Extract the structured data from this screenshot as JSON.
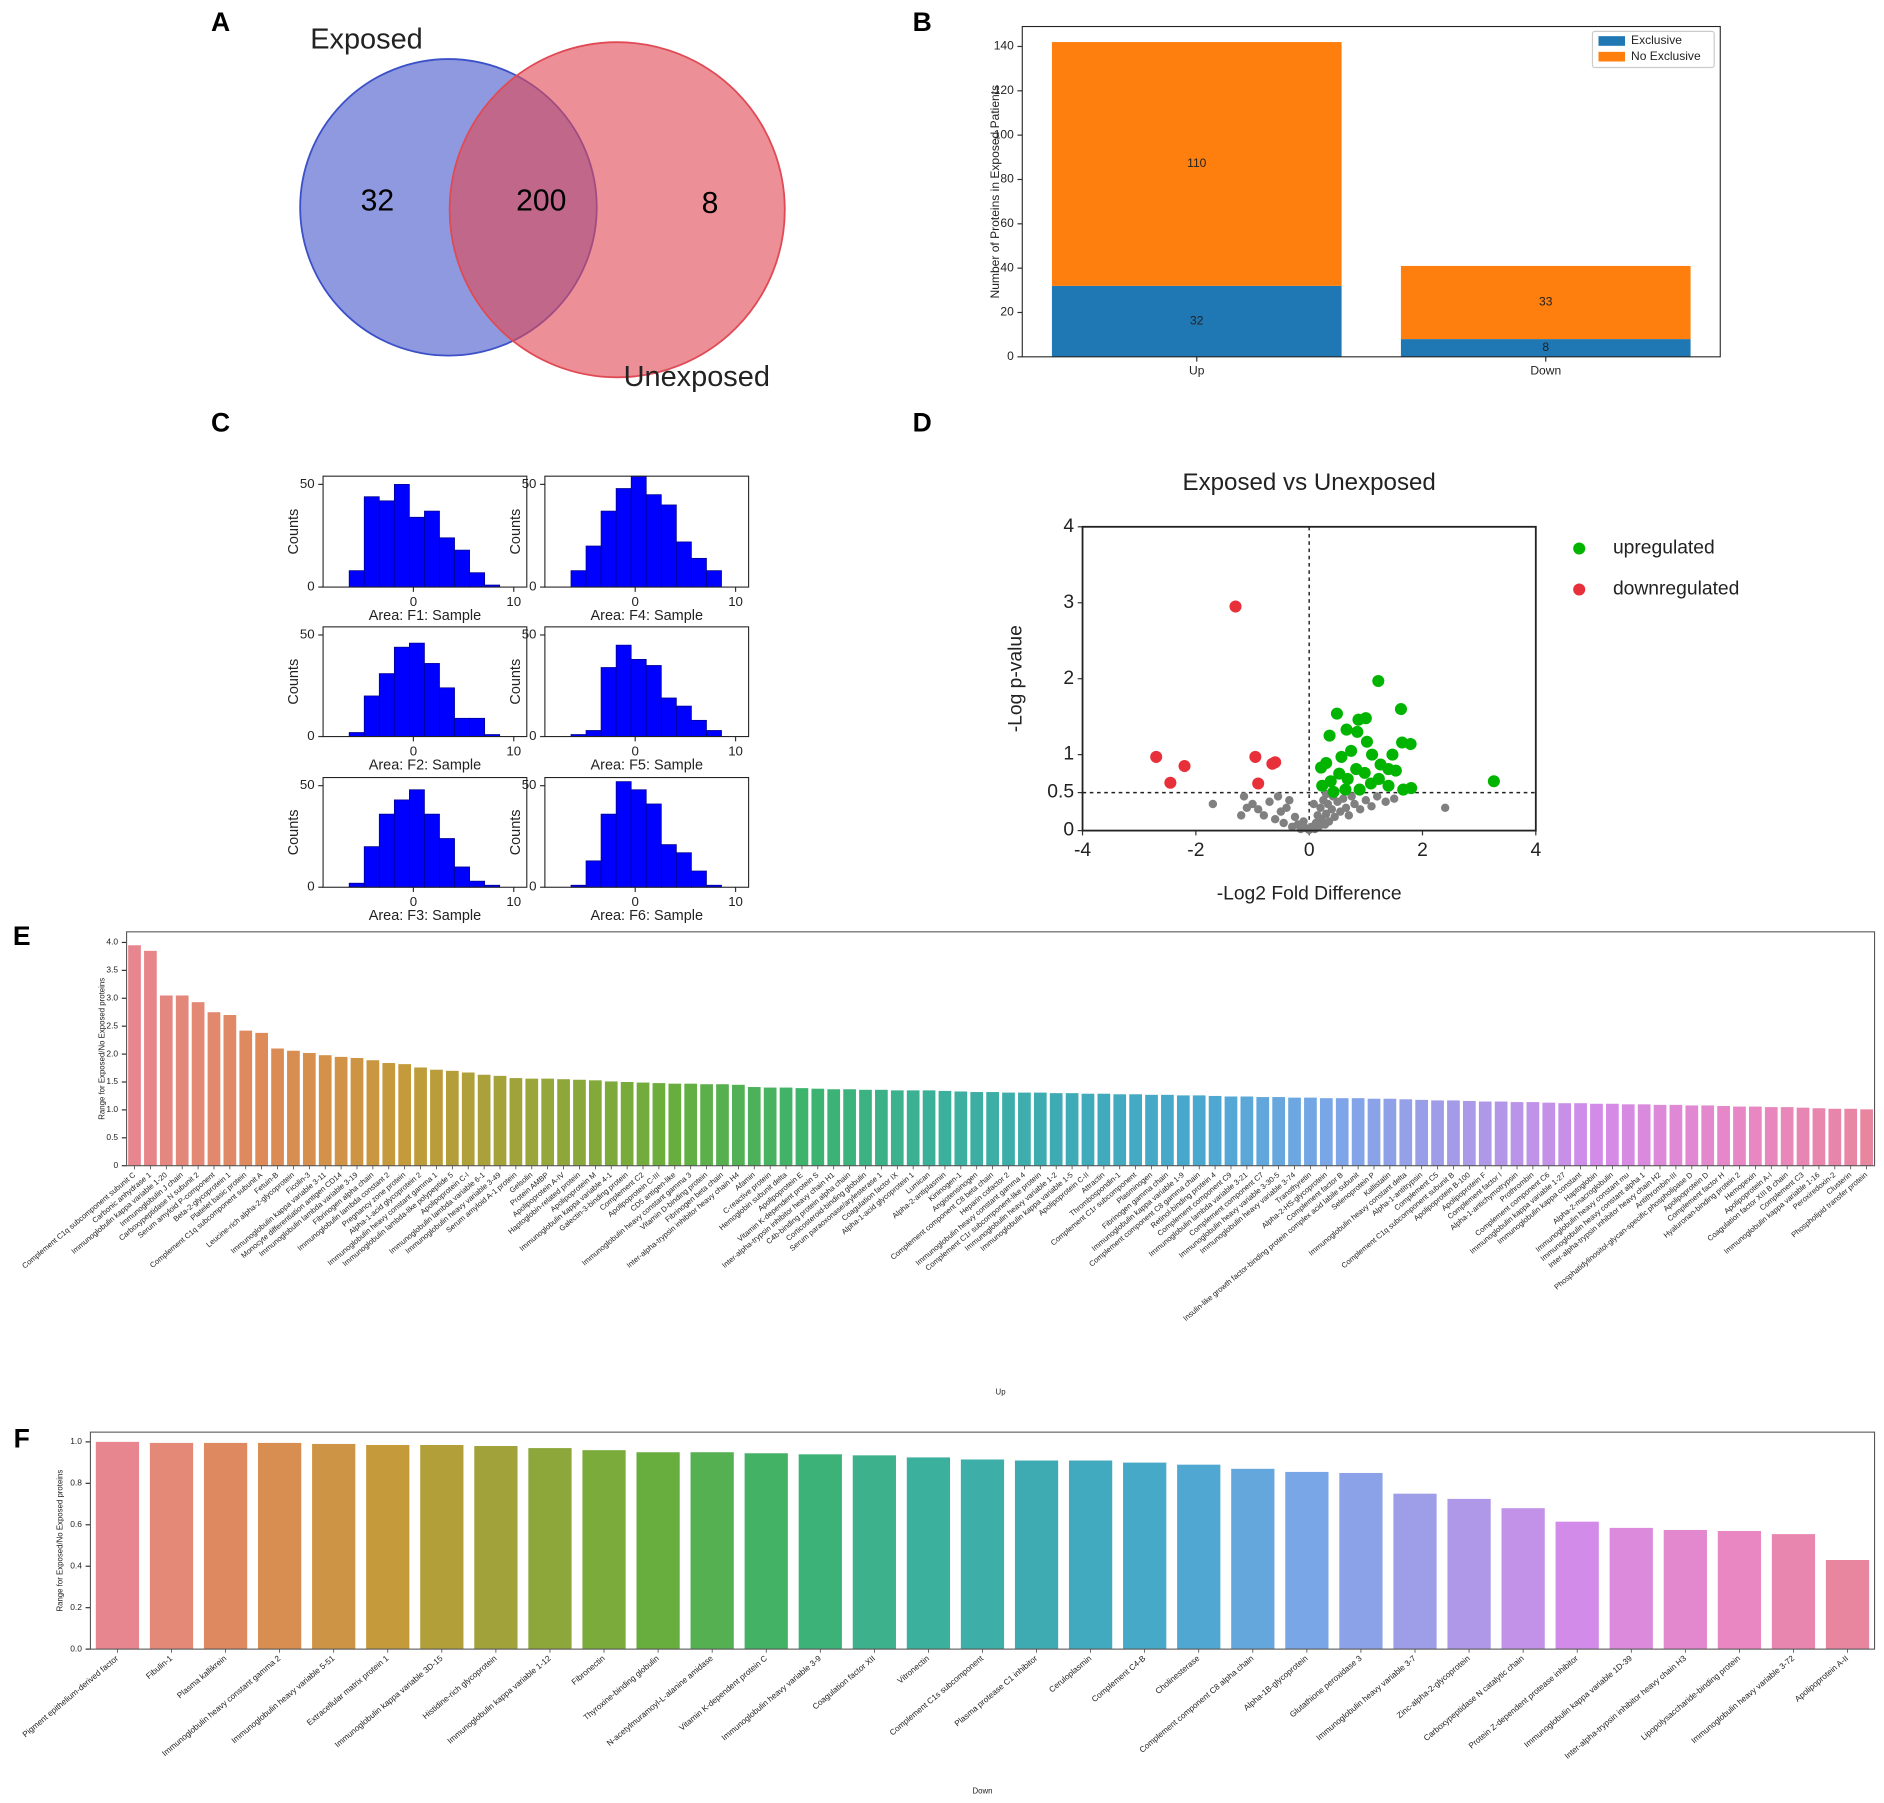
{
  "chart_data": [
    {
      "type": "venn",
      "panel": "A",
      "sets": [
        "Exposed",
        "Unexposed"
      ],
      "values": [
        32,
        200,
        8
      ],
      "colors": [
        "#3c50c8",
        "#e04a55"
      ]
    },
    {
      "type": "stacked_bar",
      "panel": "B",
      "ylabel": "Number of Proteins in Exposed Patients",
      "categories": [
        "Up",
        "Down"
      ],
      "series": [
        {
          "name": "Exclusive",
          "color": "#1f77b4",
          "values": [
            32,
            8
          ]
        },
        {
          "name": "No Exclusive",
          "color": "#ff7f0e",
          "values": [
            110,
            33
          ]
        }
      ],
      "ylim": [
        0,
        149
      ],
      "yticks": [
        0,
        20,
        40,
        60,
        80,
        100,
        120,
        140
      ],
      "legend": "upper right"
    },
    {
      "type": "histogram",
      "panel": "C",
      "xlabel": "Area: F1: Sample",
      "ylabel": "Counts",
      "color": "#0000ff",
      "bins": [
        -6.4,
        -4.9,
        -3.4,
        -1.9,
        -0.4,
        1.1,
        2.6,
        4.1,
        5.6,
        7.1,
        8.6
      ],
      "values": [
        8,
        44,
        42,
        50,
        34,
        37,
        24,
        18,
        7,
        1
      ],
      "xlim": [
        -9,
        11.3
      ],
      "ylim": [
        0,
        54
      ],
      "xticks": [
        0,
        10
      ],
      "yticks": [
        0,
        50
      ]
    },
    {
      "type": "histogram",
      "xlabel": "Area: F2: Sample",
      "ylabel": "Counts",
      "color": "#0000ff",
      "bins": [
        -6.4,
        -4.9,
        -3.4,
        -1.9,
        -0.4,
        1.1,
        2.6,
        4.1,
        5.6,
        7.1,
        8.6
      ],
      "values": [
        2,
        20,
        31,
        44,
        46,
        36,
        24,
        9,
        9,
        1
      ],
      "xlim": [
        -9,
        11.3
      ],
      "ylim": [
        0,
        54
      ],
      "xticks": [
        0,
        10
      ],
      "yticks": [
        0,
        50
      ]
    },
    {
      "type": "histogram",
      "xlabel": "Area: F3: Sample",
      "ylabel": "Counts",
      "color": "#0000ff",
      "bins": [
        -6.4,
        -4.9,
        -3.4,
        -1.9,
        -0.4,
        1.1,
        2.6,
        4.1,
        5.6,
        7.1,
        8.6
      ],
      "values": [
        2,
        20,
        36,
        43,
        48,
        36,
        24,
        10,
        3,
        1
      ],
      "xlim": [
        -9,
        11.3
      ],
      "ylim": [
        0,
        54
      ],
      "xticks": [
        0,
        10
      ],
      "yticks": [
        0,
        50
      ]
    },
    {
      "type": "histogram",
      "xlabel": "Area: F4: Sample",
      "ylabel": "Counts",
      "color": "#0000ff",
      "bins": [
        -6.4,
        -4.9,
        -3.4,
        -1.9,
        -0.4,
        1.1,
        2.6,
        4.1,
        5.6,
        7.1,
        8.6
      ],
      "values": [
        8,
        20,
        37,
        48,
        54,
        45,
        40,
        22,
        14,
        8
      ],
      "xlim": [
        -9,
        11.3
      ],
      "ylim": [
        0,
        54
      ],
      "xticks": [
        0,
        10
      ],
      "yticks": [
        0,
        50
      ]
    },
    {
      "type": "histogram",
      "xlabel": "Area: F5: Sample",
      "ylabel": "Counts",
      "color": "#0000ff",
      "bins": [
        -6.4,
        -4.9,
        -3.4,
        -1.9,
        -0.4,
        1.1,
        2.6,
        4.1,
        5.6,
        7.1,
        8.6
      ],
      "values": [
        1,
        3,
        34,
        45,
        38,
        35,
        19,
        15,
        8,
        3
      ],
      "xlim": [
        -9,
        11.3
      ],
      "ylim": [
        0,
        54
      ],
      "xticks": [
        0,
        10
      ],
      "yticks": [
        0,
        50
      ]
    },
    {
      "type": "histogram",
      "xlabel": "Area: F6: Sample",
      "ylabel": "Counts",
      "color": "#0000ff",
      "bins": [
        -6.4,
        -4.9,
        -3.4,
        -1.9,
        -0.4,
        1.1,
        2.6,
        4.1,
        5.6,
        7.1,
        8.6
      ],
      "values": [
        1,
        13,
        36,
        52,
        48,
        41,
        21,
        17,
        8,
        1
      ],
      "xlim": [
        -9,
        11.3
      ],
      "ylim": [
        0,
        54
      ],
      "xticks": [
        0,
        10
      ],
      "yticks": [
        0,
        50
      ]
    },
    {
      "type": "scatter",
      "panel": "D",
      "title": "Exposed vs Unexposed",
      "xlabel": "-Log2 Fold Difference",
      "ylabel": "-Log p-value",
      "xlim": [
        -4,
        4
      ],
      "ylim": [
        0,
        4
      ],
      "xticks": [
        -4,
        -2,
        0,
        2,
        4
      ],
      "yticks": [
        0,
        0.5,
        1,
        2,
        3,
        4
      ],
      "reference_lines": {
        "x": 0,
        "y": 0.5
      },
      "legend": "right",
      "series": [
        {
          "name": "upregulated",
          "color": "#00b400",
          "x": [
            1.22,
            0.49,
            0.87,
            1.0,
            0.85,
            0.66,
            0.36,
            1.62,
            1.64,
            1.79,
            1.47,
            3.26,
            0.21,
            0.57,
            0.74,
            1.11,
            1.26,
            1.53,
            0.23,
            0.38,
            0.53,
            0.68,
            0.83,
            0.98,
            1.09,
            1.23,
            1.4,
            1.66,
            0.43,
            0.64,
            0.89,
            1.8,
            0.3,
            1.02,
            1.4
          ],
          "values": [
            1.97,
            1.54,
            1.46,
            1.48,
            1.3,
            1.33,
            1.25,
            1.6,
            1.16,
            1.14,
            1.0,
            0.65,
            0.83,
            0.97,
            1.05,
            1.0,
            0.87,
            0.79,
            0.59,
            0.65,
            0.75,
            0.68,
            0.81,
            0.76,
            0.62,
            0.68,
            0.59,
            0.54,
            0.51,
            0.54,
            0.54,
            0.56,
            0.89,
            1.17,
            0.81
          ]
        },
        {
          "name": "downregulated",
          "color": "#e8303a",
          "x": [
            -1.3,
            -2.7,
            -2.2,
            -2.45,
            -0.95,
            -0.6,
            -0.65,
            -0.9
          ],
          "values": [
            2.95,
            0.97,
            0.85,
            0.63,
            0.97,
            0.9,
            0.88,
            0.62
          ]
        },
        {
          "color": "#808080",
          "x": [
            -1.2,
            -1.1,
            -1.0,
            -0.9,
            -0.8,
            -0.7,
            -0.6,
            -0.5,
            -0.45,
            -0.4,
            -0.3,
            -0.25,
            -0.2,
            -0.15,
            -0.1,
            -0.05,
            0,
            0.05,
            0.1,
            0.12,
            0.15,
            0.18,
            0.2,
            0.22,
            0.25,
            0.28,
            0.3,
            0.33,
            0.35,
            0.4,
            0.42,
            0.45,
            0.5,
            0.55,
            0.6,
            0.65,
            0.7,
            0.75,
            0.8,
            0.9,
            1.0,
            1.1,
            1.2,
            1.35,
            1.5,
            2.4,
            -1.7,
            -1.15,
            -0.55,
            0.08,
            0.3,
            -0.35
          ],
          "values": [
            0.2,
            0.3,
            0.35,
            0.28,
            0.2,
            0.38,
            0.15,
            0.25,
            0.1,
            0.3,
            0.05,
            0.18,
            0.08,
            0.02,
            0.12,
            0.03,
            0.01,
            0.05,
            0.02,
            0.1,
            0.2,
            0.06,
            0.3,
            0.15,
            0.4,
            0.08,
            0.22,
            0.35,
            0.12,
            0.28,
            0.45,
            0.18,
            0.38,
            0.25,
            0.42,
            0.3,
            0.2,
            0.45,
            0.35,
            0.28,
            0.4,
            0.32,
            0.45,
            0.38,
            0.42,
            0.3,
            0.35,
            0.45,
            0.45,
            0.35,
            0.48,
            0.4
          ]
        }
      ]
    },
    {
      "type": "bar",
      "panel": "E",
      "xlabel": "Up",
      "ylabel": "Range for Exposed/No Exposed proteins",
      "palette": [
        "#e8868f",
        "#dd8a56",
        "#c59a3a",
        "#9aa53a",
        "#6aae3c",
        "#3db36b",
        "#3bb09a",
        "#3eabb6",
        "#4aa8cf",
        "#7ba6e8",
        "#a99ae8",
        "#d38be8",
        "#e887c8",
        "#e886a0"
      ],
      "ylim": [
        0,
        4.19
      ],
      "yticks": [
        0,
        0.5,
        {
          "value": 1,
          "label": "1.0"
        },
        1.5,
        {
          "value": 2,
          "label": "2.0"
        },
        2.5,
        {
          "value": 3,
          "label": "3.0"
        },
        3.5,
        {
          "value": 4,
          "label": "4.0"
        }
      ],
      "categories": [
        "Complement C1q subcomponent subunit C",
        "Carbonic anhydrase 1",
        "Immunoglobulin kappa variable 1-20",
        "Immunoglobulin J chain",
        "Carboxypeptidase N subunit 2",
        "Serum amyloid P-component",
        "Beta-2-glycoprotein 1",
        "Platelet basic protein",
        "Complement C1q subcomponent subunit A",
        "Fetuin-B",
        "Leucine-rich alpha-2-glycoprotein",
        "Ficolin-3",
        "Immunoglobulin kappa variable 3-11",
        "Monocyte differentiation antigen CD14",
        "Immunoglobulin lambda variable 3-19",
        "Fibrinogen alpha chain",
        "Immunoglobulin lambda constant 2",
        "Pregnancy zone protein",
        "Alpha-1-acid glycoprotein 2",
        "Immunoglobulin heavy constant gamma 1",
        "Immunoglobulin lambda-like polypeptide 5",
        "Apolipoprotein C-I",
        "Immunoglobulin lambda variable 6-1",
        "Immunoglobulin heavy variable 3-49",
        "Serum amyloid A-1 protein",
        "Gelsolin",
        "Protein AMBP",
        "Apolipoprotein A-IV",
        "Haptoglobin-related protein",
        "Apolipoprotein M",
        "Immunoglobulin kappa variable 4-1",
        "Galectin-3-binding protein",
        "Complement C2",
        "Apolipoprotein C-III",
        "CD5 antigen-like",
        "Immunoglobulin heavy constant gamma 3",
        "Vitamin D-binding protein",
        "Fibrinogen beta chain",
        "Inter-alpha-trypsin inhibitor heavy chain H4",
        "Afamin",
        "C-reactive protein",
        "Hemoglobin subunit delta",
        "Apolipoprotein E",
        "Vitamin K-dependent protein S",
        "Inter-alpha-trypsin inhibitor heavy chain H1",
        "C4b-binding protein alpha chain",
        "Corticosteroid-binding globulin",
        "Serum paraoxonase/arylesterase 1",
        "Coagulation factor IX",
        "Alpha-1-acid glycoprotein 1",
        "Lumican",
        "Alpha-2-antiplasmin",
        "Kininogen-1",
        "Angiotensinogen",
        "Complement component C8 beta chain",
        "Heparin cofactor 2",
        "Immunoglobulin heavy constant gamma 4",
        "Complement C1r subcomponent-like protein",
        "Immunoglobulin heavy variable 1-2",
        "Immunoglobulin kappa variable 1-5",
        "Apolipoprotein C-II",
        "Attractin",
        "Thrombospondin-1",
        "Complement C1r subcomponent",
        "Plasminogen",
        "Fibrinogen gamma chain",
        "Immunoglobulin kappa variable 1-9",
        "Complement component C8 gamma chain",
        "Retinol-binding protein 4",
        "Complement component C9",
        "Immunoglobulin lambda variable 3-21",
        "Complement component C7",
        "Immunoglobulin heavy variable 3-30-5",
        "Immunoglobulin heavy variable 3-74",
        "Transthyretin",
        "Alpha-2-HS-glycoprotein",
        "Complement factor B",
        "Insulin-like growth factor-binding protein complex acid labile subunit",
        "Selenoprotein P",
        "Kallistatin",
        "Immunoglobulin heavy constant delta",
        "Alpha-1-antitrypsin",
        "Complement C5",
        "Complement C1q subcomponent subunit B",
        "Apolipoprotein B-100",
        "Apolipoprotein F",
        "Complement factor I",
        "Alpha-1-antichymotrypsin",
        "Prothrombin",
        "Complement component C6",
        "Immunoglobulin kappa variable 1-27",
        "Immunoglobulin kappa constant",
        "Haptoglobin",
        "Alpha-2-macroglobulin",
        "Immunoglobulin heavy constant mu",
        "Immunoglobulin heavy constant alpha 1",
        "Inter-alpha-trypsin inhibitor heavy chain H2",
        "Antithrombin-III",
        "Phosphatidylinositol-glycan-specific phospholipase D",
        "Apolipoprotein D",
        "Complement factor H",
        "Hyaluronan-binding protein 2",
        "Hemopexin",
        "Apolipoprotein A-I",
        "Coagulation factor XIII B chain",
        "Complement C3",
        "Immunoglobulin kappa variable 1-16",
        "Peroxiredoxin-2",
        "Clusterin",
        "Phospholipid transfer protein"
      ],
      "values": [
        3.95,
        3.85,
        3.05,
        3.05,
        2.93,
        2.75,
        2.7,
        2.42,
        2.38,
        2.1,
        2.06,
        2.02,
        1.98,
        1.95,
        1.93,
        1.89,
        1.84,
        1.82,
        1.76,
        1.72,
        1.7,
        1.67,
        1.63,
        1.61,
        1.57,
        1.56,
        1.56,
        1.55,
        1.54,
        1.53,
        1.51,
        1.5,
        1.49,
        1.48,
        1.47,
        1.47,
        1.46,
        1.46,
        1.45,
        1.41,
        1.4,
        1.4,
        1.39,
        1.38,
        1.37,
        1.37,
        1.36,
        1.36,
        1.35,
        1.35,
        1.35,
        1.34,
        1.33,
        1.32,
        1.32,
        1.31,
        1.31,
        1.31,
        1.3,
        1.3,
        1.29,
        1.29,
        1.28,
        1.28,
        1.27,
        1.27,
        1.26,
        1.26,
        1.25,
        1.24,
        1.24,
        1.23,
        1.23,
        1.22,
        1.22,
        1.21,
        1.21,
        1.21,
        1.2,
        1.2,
        1.19,
        1.18,
        1.17,
        1.17,
        1.16,
        1.15,
        1.15,
        1.14,
        1.14,
        1.13,
        1.12,
        1.12,
        1.11,
        1.11,
        1.1,
        1.1,
        1.09,
        1.09,
        1.08,
        1.08,
        1.07,
        1.06,
        1.06,
        1.05,
        1.05,
        1.04,
        1.03,
        1.02,
        1.02,
        1.01
      ]
    },
    {
      "type": "bar",
      "panel": "F",
      "xlabel": "Down",
      "ylabel": "Range for Exposed/No Exposed proteins",
      "palette": [
        "#e8868f",
        "#dd8a56",
        "#c59a3a",
        "#9aa53a",
        "#6aae3c",
        "#3db36b",
        "#3bb09a",
        "#3eabb6",
        "#4aa8cf",
        "#7ba6e8",
        "#a99ae8",
        "#d38be8",
        "#e887c8",
        "#e886a0"
      ],
      "ylim": [
        0,
        1.047
      ],
      "yticks": [
        {
          "value": 0,
          "label": "0.0"
        },
        0.2,
        0.4,
        0.6,
        0.8,
        {
          "value": 1,
          "label": "1.0"
        }
      ],
      "categories": [
        "Pigment epithelium-derived factor",
        "Fibulin-1",
        "Plasma kallikrein",
        "Immunoglobulin heavy constant gamma 2",
        "Immunoglobulin heavy variable 5-51",
        "Extracellular matrix protein 1",
        "Immunoglobulin kappa variable 3D-15",
        "Histidine-rich glycoprotein",
        "Immunoglobulin kappa variable 1-12",
        "Fibronectin",
        "Thyroxine-binding globulin",
        "N-acetylmuramoyl-L-alanine amidase",
        "Vitamin K-dependent protein C",
        "Immunoglobulin heavy variable 3-9",
        "Coagulation factor XII",
        "Vitronectin",
        "Complement C1s subcomponent",
        "Plasma protease C1 inhibitor",
        "Ceruloplasmin",
        "Complement C4-B",
        "Cholinesterase",
        "Complement component C8 alpha chain",
        "Alpha-1B-glycoprotein",
        "Glutathione peroxidase 3",
        "Immunoglobulin heavy variable 3-7",
        "Zinc-alpha-2-glycoprotein",
        "Carboxypeptidase N catalytic chain",
        "Protein Z-dependent protease inhibitor",
        "Immunoglobulin kappa variable 1D-39",
        "Inter-alpha-trypsin inhibitor heavy chain H3",
        "Lipopolysaccharide-binding protein",
        "Immunoglobulin heavy variable 3-72",
        "Apolipoprotein A-II"
      ],
      "values": [
        1.0,
        0.995,
        0.995,
        0.995,
        0.99,
        0.985,
        0.985,
        0.98,
        0.97,
        0.96,
        0.95,
        0.95,
        0.945,
        0.94,
        0.935,
        0.925,
        0.915,
        0.91,
        0.91,
        0.9,
        0.89,
        0.87,
        0.855,
        0.85,
        0.75,
        0.725,
        0.68,
        0.615,
        0.585,
        0.575,
        0.57,
        0.555,
        0.43
      ]
    }
  ]
}
